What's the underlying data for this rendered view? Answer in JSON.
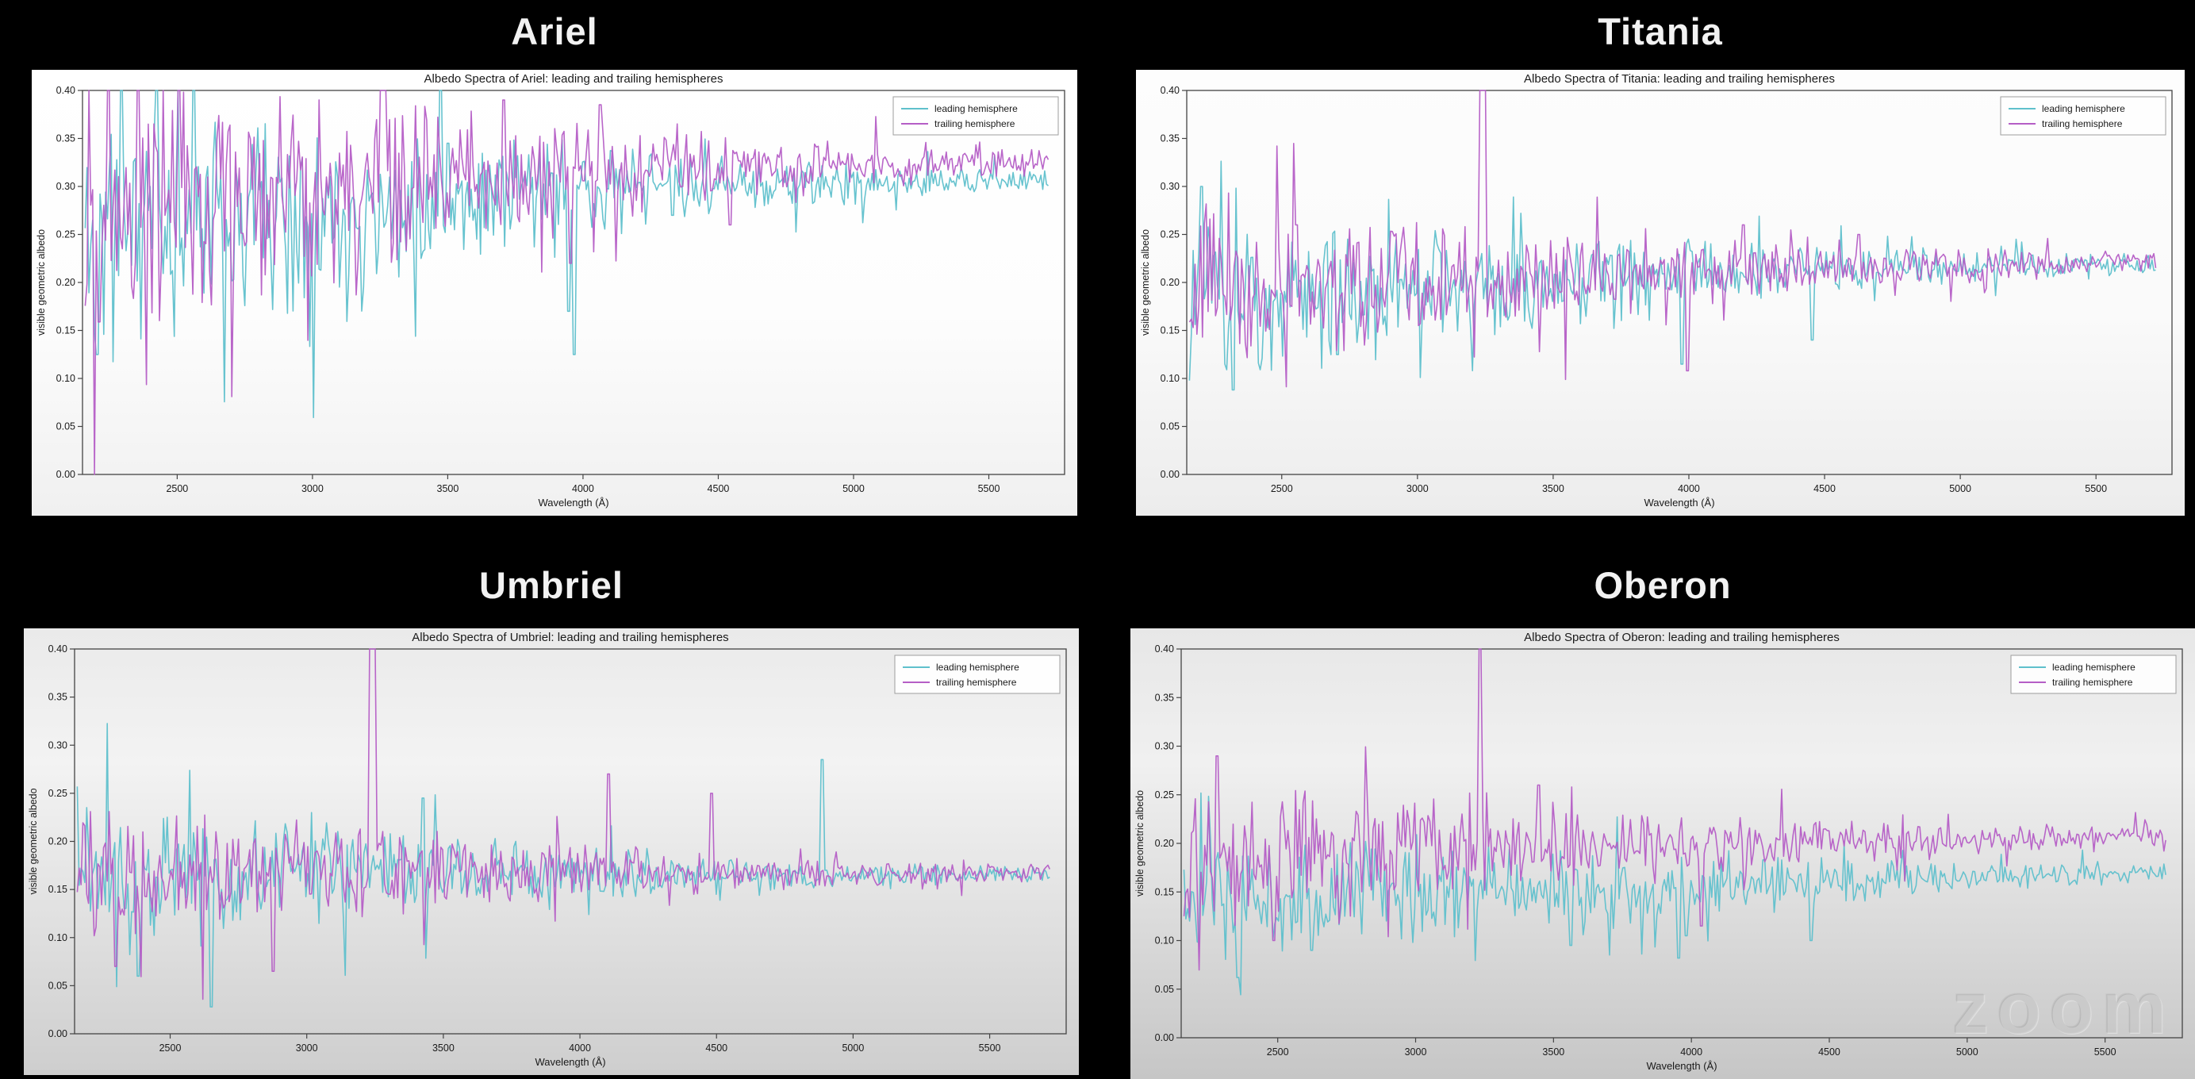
{
  "page": {
    "background": "#000000",
    "watermark": "zoom"
  },
  "legend": {
    "leading": "leading hemisphere",
    "trailing": "trailing hemisphere"
  },
  "colors": {
    "leading": "#5fc0cc",
    "trailing": "#b55ec6",
    "spine": "#444444",
    "tick_text": "#1a1a1a",
    "heading_text": "#f2f2f2"
  },
  "chart_data": [
    {
      "type": "line",
      "moon": "Ariel",
      "title": "Albedo Spectra of Ariel: leading and trailing hemispheres",
      "xlabel": "Wavelength (Å)",
      "ylabel": "visible geometric albedo",
      "xlim": [
        2150,
        5780
      ],
      "ylim": [
        0.0,
        0.4
      ],
      "xticks": [
        2500,
        3000,
        3500,
        4000,
        4500,
        5000,
        5500
      ],
      "yticks": [
        0.0,
        0.05,
        0.1,
        0.15,
        0.2,
        0.25,
        0.3,
        0.35,
        0.4
      ],
      "grid": false,
      "legend_position": "upper right",
      "series": [
        {
          "name": "leading hemisphere",
          "color": "#5fc0cc",
          "seed": 11,
          "n": 520,
          "noise": [
            0.072,
            0.007
          ],
          "noise_decay": 1.7,
          "baseline": [
            [
              2160,
              0.25
            ],
            [
              2500,
              0.26
            ],
            [
              2900,
              0.265
            ],
            [
              3300,
              0.28
            ],
            [
              3700,
              0.29
            ],
            [
              4000,
              0.295
            ],
            [
              4400,
              0.3
            ],
            [
              4800,
              0.302
            ],
            [
              5200,
              0.304
            ],
            [
              5720,
              0.305
            ]
          ],
          "spikes": [
            [
              2200,
              0.125
            ],
            [
              2290,
              0.4
            ],
            [
              2420,
              0.4
            ],
            [
              2560,
              0.4
            ],
            [
              3470,
              0.4
            ],
            [
              3500,
              0.345
            ],
            [
              3945,
              0.17
            ],
            [
              3965,
              0.125
            ],
            [
              4330,
              0.27
            ]
          ]
        },
        {
          "name": "trailing hemisphere",
          "color": "#b55ec6",
          "seed": 77,
          "n": 520,
          "noise": [
            0.075,
            0.009
          ],
          "noise_decay": 1.7,
          "baseline": [
            [
              2160,
              0.265
            ],
            [
              2500,
              0.275
            ],
            [
              2900,
              0.285
            ],
            [
              3300,
              0.3
            ],
            [
              3700,
              0.308
            ],
            [
              4000,
              0.312
            ],
            [
              4400,
              0.318
            ],
            [
              4800,
              0.32
            ],
            [
              5200,
              0.322
            ],
            [
              5720,
              0.323
            ]
          ],
          "spikes": [
            [
              2240,
              0.4
            ],
            [
              2350,
              0.4
            ],
            [
              2500,
              0.4
            ],
            [
              3250,
              0.4
            ],
            [
              3265,
              0.4
            ],
            [
              3700,
              0.39
            ],
            [
              4060,
              0.385
            ],
            [
              3950,
              0.22
            ],
            [
              4540,
              0.26
            ]
          ]
        }
      ]
    },
    {
      "type": "line",
      "moon": "Titania",
      "title": "Albedo Spectra of Titania: leading and trailing hemispheres",
      "xlabel": "Wavelength (Å)",
      "ylabel": "visible geometric albedo",
      "xlim": [
        2150,
        5780
      ],
      "ylim": [
        0.0,
        0.4
      ],
      "xticks": [
        2500,
        3000,
        3500,
        4000,
        4500,
        5000,
        5500
      ],
      "yticks": [
        0.0,
        0.05,
        0.1,
        0.15,
        0.2,
        0.25,
        0.3,
        0.35,
        0.4
      ],
      "grid": false,
      "legend_position": "upper right",
      "series": [
        {
          "name": "leading hemisphere",
          "color": "#5fc0cc",
          "seed": 23,
          "n": 520,
          "noise": [
            0.046,
            0.006
          ],
          "noise_decay": 1.6,
          "baseline": [
            [
              2160,
              0.185
            ],
            [
              2600,
              0.19
            ],
            [
              3000,
              0.195
            ],
            [
              3400,
              0.2
            ],
            [
              3800,
              0.205
            ],
            [
              4200,
              0.21
            ],
            [
              4700,
              0.215
            ],
            [
              5200,
              0.218
            ],
            [
              5720,
              0.22
            ]
          ],
          "spikes": [
            [
              2200,
              0.3
            ],
            [
              2320,
              0.088
            ],
            [
              2700,
              0.125
            ],
            [
              3970,
              0.115
            ],
            [
              4450,
              0.14
            ]
          ]
        },
        {
          "name": "trailing hemisphere",
          "color": "#b55ec6",
          "seed": 91,
          "n": 520,
          "noise": [
            0.044,
            0.007
          ],
          "noise_decay": 1.6,
          "baseline": [
            [
              2160,
              0.19
            ],
            [
              2600,
              0.195
            ],
            [
              3000,
              0.2
            ],
            [
              3400,
              0.205
            ],
            [
              3800,
              0.207
            ],
            [
              4200,
              0.212
            ],
            [
              4700,
              0.216
            ],
            [
              5200,
              0.219
            ],
            [
              5720,
              0.221
            ]
          ],
          "spikes": [
            [
              3230,
              0.42
            ],
            [
              3243,
              0.42
            ],
            [
              2550,
              0.26
            ],
            [
              3990,
              0.108
            ],
            [
              4620,
              0.25
            ],
            [
              4200,
              0.26
            ]
          ]
        }
      ]
    },
    {
      "type": "line",
      "moon": "Umbriel",
      "title": "Albedo Spectra of Umbriel: leading and trailing hemispheres",
      "xlabel": "Wavelength (Å)",
      "ylabel": "visible geometric albedo",
      "xlim": [
        2150,
        5780
      ],
      "ylim": [
        0.0,
        0.4
      ],
      "xticks": [
        2500,
        3000,
        3500,
        4000,
        4500,
        5000,
        5500
      ],
      "yticks": [
        0.0,
        0.05,
        0.1,
        0.15,
        0.2,
        0.25,
        0.3,
        0.35,
        0.4
      ],
      "grid": false,
      "legend_position": "upper right",
      "series": [
        {
          "name": "leading hemisphere",
          "color": "#5fc0cc",
          "seed": 37,
          "n": 520,
          "noise": [
            0.04,
            0.005
          ],
          "noise_decay": 1.6,
          "baseline": [
            [
              2160,
              0.16
            ],
            [
              2600,
              0.163
            ],
            [
              3000,
              0.168
            ],
            [
              3400,
              0.17
            ],
            [
              3800,
              0.165
            ],
            [
              4200,
              0.164
            ],
            [
              4600,
              0.164
            ],
            [
              5000,
              0.164
            ],
            [
              5400,
              0.166
            ],
            [
              5720,
              0.166
            ]
          ],
          "spikes": [
            [
              2380,
              0.06
            ],
            [
              2650,
              0.028
            ],
            [
              3420,
              0.245
            ],
            [
              4880,
              0.285
            ],
            [
              4900,
              0.17
            ]
          ]
        },
        {
          "name": "trailing hemisphere",
          "color": "#b55ec6",
          "seed": 53,
          "n": 520,
          "noise": [
            0.038,
            0.005
          ],
          "noise_decay": 1.6,
          "baseline": [
            [
              2160,
              0.168
            ],
            [
              2600,
              0.17
            ],
            [
              3000,
              0.172
            ],
            [
              3400,
              0.172
            ],
            [
              3800,
              0.167
            ],
            [
              4200,
              0.166
            ],
            [
              4600,
              0.166
            ],
            [
              5000,
              0.166
            ],
            [
              5400,
              0.167
            ],
            [
              5720,
              0.168
            ]
          ],
          "spikes": [
            [
              3230,
              0.43
            ],
            [
              3244,
              0.43
            ],
            [
              2870,
              0.065
            ],
            [
              4100,
              0.27
            ],
            [
              4480,
              0.25
            ],
            [
              2300,
              0.07
            ]
          ]
        }
      ]
    },
    {
      "type": "line",
      "moon": "Oberon",
      "title": "Albedo Spectra of Oberon: leading and trailing hemispheres",
      "xlabel": "Wavelength (Å)",
      "ylabel": "visible geometric albedo",
      "xlim": [
        2150,
        5780
      ],
      "ylim": [
        0.0,
        0.4
      ],
      "xticks": [
        2500,
        3000,
        3500,
        4000,
        4500,
        5000,
        5500
      ],
      "yticks": [
        0.0,
        0.05,
        0.1,
        0.15,
        0.2,
        0.25,
        0.3,
        0.35,
        0.4
      ],
      "grid": false,
      "legend_position": "upper right",
      "series": [
        {
          "name": "leading hemisphere",
          "color": "#5fc0cc",
          "seed": 67,
          "n": 520,
          "noise": [
            0.034,
            0.006
          ],
          "noise_decay": 1.5,
          "baseline": [
            [
              2160,
              0.14
            ],
            [
              2600,
              0.145
            ],
            [
              3000,
              0.15
            ],
            [
              3400,
              0.155
            ],
            [
              3800,
              0.15
            ],
            [
              4200,
              0.158
            ],
            [
              4600,
              0.162
            ],
            [
              5000,
              0.165
            ],
            [
              5400,
              0.168
            ],
            [
              5720,
              0.17
            ]
          ],
          "spikes": [
            [
              2350,
              0.062
            ],
            [
              2620,
              0.09
            ],
            [
              3560,
              0.095
            ],
            [
              3950,
              0.082
            ],
            [
              3975,
              0.105
            ],
            [
              4430,
              0.1
            ]
          ]
        },
        {
          "name": "trailing hemisphere",
          "color": "#b55ec6",
          "seed": 29,
          "n": 520,
          "noise": [
            0.036,
            0.007
          ],
          "noise_decay": 1.5,
          "baseline": [
            [
              2160,
              0.18
            ],
            [
              2600,
              0.19
            ],
            [
              3000,
              0.196
            ],
            [
              3400,
              0.198
            ],
            [
              3800,
              0.196
            ],
            [
              4200,
              0.2
            ],
            [
              4600,
              0.202
            ],
            [
              5000,
              0.204
            ],
            [
              5400,
              0.205
            ],
            [
              5720,
              0.207
            ]
          ],
          "spikes": [
            [
              3230,
              0.42
            ],
            [
              2280,
              0.29
            ],
            [
              3440,
              0.26
            ],
            [
              4030,
              0.115
            ],
            [
              2480,
              0.1
            ]
          ]
        }
      ]
    }
  ]
}
